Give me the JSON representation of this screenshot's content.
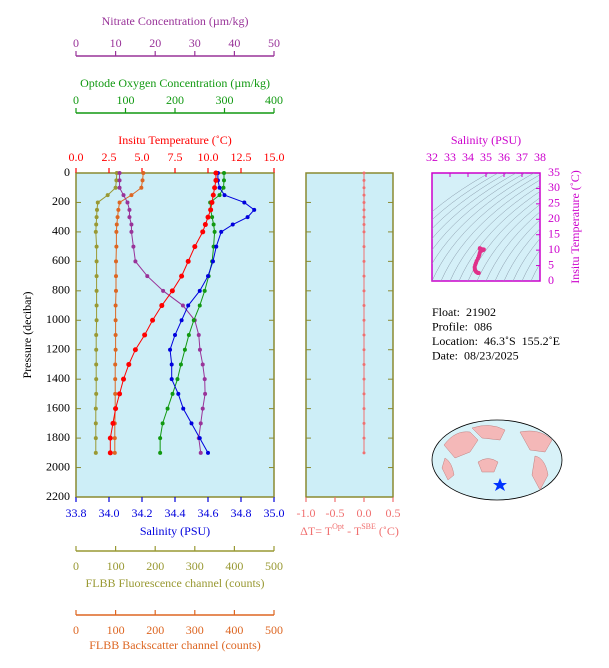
{
  "chart_data": [
    {
      "type": "profile",
      "ylabel": "Pressure (decibar)",
      "ylim": [
        0,
        2200
      ],
      "yticks": [
        0,
        200,
        400,
        600,
        800,
        1000,
        1200,
        1400,
        1600,
        1800,
        2000,
        2200
      ],
      "pressure": [
        0,
        50,
        100,
        150,
        200,
        250,
        300,
        350,
        400,
        500,
        600,
        700,
        800,
        900,
        1000,
        1100,
        1200,
        1300,
        1400,
        1500,
        1600,
        1700,
        1800,
        1900
      ],
      "axes": [
        {
          "label": "Insitu Temperature (˚C)",
          "color": "#ff0000",
          "xlim": [
            0,
            15
          ],
          "xticks": [
            {
              "value": 0,
              "label": "0.0"
            },
            {
              "value": 2.5,
              "label": "2.5"
            },
            {
              "value": 5,
              "label": "5.0"
            },
            {
              "value": 7.5,
              "label": "7.5"
            },
            {
              "value": 10,
              "label": "10.0"
            },
            {
              "value": 12.5,
              "label": "12.5"
            },
            {
              "value": 15,
              "label": "15.0"
            }
          ],
          "values": [
            10.6,
            10.6,
            10.5,
            10.4,
            10.3,
            10.2,
            10.0,
            9.8,
            9.6,
            9.0,
            8.5,
            8.0,
            7.3,
            6.5,
            5.8,
            5.2,
            4.5,
            4.0,
            3.6,
            3.3,
            3.0,
            2.8,
            2.6,
            2.6
          ]
        },
        {
          "label": "Salinity (PSU)",
          "color": "#0000dd",
          "xlim": [
            33.8,
            35.0
          ],
          "xticks": [
            33.8,
            {
              "value": 34,
              "label": "34.0"
            },
            34.2,
            34.4,
            34.6,
            34.8,
            {
              "value": 35,
              "label": "35.0"
            }
          ],
          "values": [
            34.66,
            34.66,
            34.67,
            34.7,
            34.82,
            34.88,
            34.84,
            34.75,
            34.68,
            34.65,
            34.63,
            34.6,
            34.55,
            34.48,
            34.44,
            34.4,
            34.37,
            34.38,
            34.38,
            34.42,
            34.45,
            34.5,
            34.55,
            34.6
          ]
        },
        {
          "label": "Optode Oxygen Concentration (µm/kg)",
          "color": "#119911",
          "xlim": [
            0,
            400
          ],
          "xticks": [
            0,
            100,
            200,
            300,
            400
          ],
          "values": [
            299,
            299,
            298,
            290,
            271,
            272,
            275,
            278,
            280,
            278,
            275,
            268,
            260,
            250,
            238,
            228,
            220,
            212,
            205,
            195,
            185,
            175,
            170,
            170
          ]
        },
        {
          "label": "Nitrate Concentration (µm/kg)",
          "color": "#993399",
          "xlim": [
            0,
            50
          ],
          "xticks": [
            0,
            10,
            20,
            30,
            40,
            50
          ],
          "values": [
            11,
            11,
            11,
            12,
            13,
            13.5,
            13.5,
            14,
            14,
            14.5,
            15,
            18,
            22,
            27,
            30,
            31,
            31.3,
            32,
            32.5,
            32.6,
            32,
            31.5,
            31,
            31.5
          ]
        },
        {
          "label": "FLBB Fluorescence channel (counts)",
          "color": "#999933",
          "xlim": [
            0,
            500
          ],
          "xticks": [
            0,
            100,
            200,
            300,
            400,
            500
          ],
          "values": [
            103,
            102,
            100,
            80,
            55,
            53,
            52,
            51,
            50,
            52,
            52,
            52,
            52,
            52,
            52,
            51,
            51,
            51,
            51,
            51,
            50,
            50,
            50,
            50
          ]
        },
        {
          "label": "FLBB Backscatter channel (counts)",
          "color": "#dd6622",
          "xlim": [
            0,
            500
          ],
          "xticks": [
            0,
            100,
            200,
            300,
            400,
            500
          ],
          "values": [
            170,
            168,
            165,
            140,
            110,
            107,
            105,
            103,
            102,
            102,
            101,
            101,
            101,
            100,
            100,
            100,
            100,
            99,
            99,
            99,
            99,
            98,
            98,
            98
          ]
        }
      ]
    },
    {
      "type": "delta",
      "label": [
        "ΔT= T",
        "Opt",
        " - T",
        "SBE",
        " (˚C)"
      ],
      "color": "#f07070",
      "xlim": [
        -1.0,
        0.5
      ],
      "xticks": [
        {
          "value": -1,
          "label": "-1.0"
        },
        -0.5,
        {
          "value": 0,
          "label": "0.0"
        },
        0.5
      ],
      "values": [
        0,
        0,
        0,
        0,
        0,
        0,
        0,
        0,
        0,
        0,
        0,
        0,
        0,
        0,
        0,
        0,
        0,
        0,
        0,
        0,
        0,
        0,
        0,
        0
      ]
    },
    {
      "type": "ts",
      "title": "Salinity (PSU)",
      "ylabel": "Insitu Temperature (˚C)",
      "color": "#e0308a",
      "xlim": [
        32,
        38
      ],
      "xticks": [
        32,
        33,
        34,
        35,
        36,
        37,
        38
      ],
      "ylim": [
        0,
        35
      ],
      "yticks": [
        0,
        5,
        10,
        15,
        20,
        25,
        30,
        35
      ]
    }
  ],
  "info": [
    "Float:  21902",
    "Profile:  086",
    "Location:  46.3˚S  155.2˚E",
    "Date:  08/23/2025"
  ]
}
